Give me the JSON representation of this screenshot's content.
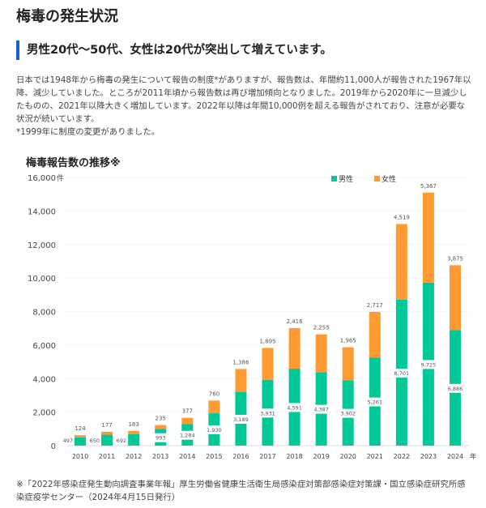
{
  "page": {
    "title": "梅毒の発生状況",
    "subtitle": "男性20代～50代、女性は20代が突出して増えています。",
    "intro": "日本では1948年から梅毒の発生について報告の制度*がありますが、報告数は、年間約11,000人が報告された1967年以降、減少していました。ところが2011年頃から報告数は再び増加傾向となりました。2019年から2020年に一旦減少したものの、2021年以降大きく増加しています。2022年以降は年間10,000例を超える報告がされており、注意が必要な状況が続いています。",
    "note": "*1999年に制度の変更がありました。",
    "source": "※「2022年感染症発生動向調査事業年報」厚生労働省健康生活衛生局感染症対策部感染症対策課・国立感染症研究所感染症疫学センター（2024年4月15日発行）"
  },
  "chart_data": {
    "type": "bar",
    "stacked": true,
    "title": "梅毒報告数の推移※",
    "categories": [
      "2010",
      "2011",
      "2012",
      "2013",
      "2014",
      "2015",
      "2016",
      "2017",
      "2018",
      "2019",
      "2020",
      "2021",
      "2022",
      "2023",
      "2024"
    ],
    "x_unit": "年",
    "y_unit": "件",
    "ylim": [
      0,
      16000
    ],
    "yticks": [
      "0",
      "2,000",
      "4,000",
      "6,000",
      "8,000",
      "10,000",
      "12,000",
      "14,000",
      "16,000"
    ],
    "grid": true,
    "legend": "top-right",
    "series": [
      {
        "name": "男性",
        "color": "#00c896",
        "values": [
          497,
          650,
          692,
          993,
          1284,
          1930,
          3189,
          3931,
          4591,
          4387,
          3902,
          5261,
          8701,
          9725,
          6886
        ]
      },
      {
        "name": "女性",
        "color": "#ff9a33",
        "values": [
          124,
          177,
          183,
          235,
          377,
          760,
          1386,
          1895,
          2416,
          2255,
          1965,
          2717,
          4519,
          5367,
          3875
        ]
      }
    ]
  }
}
